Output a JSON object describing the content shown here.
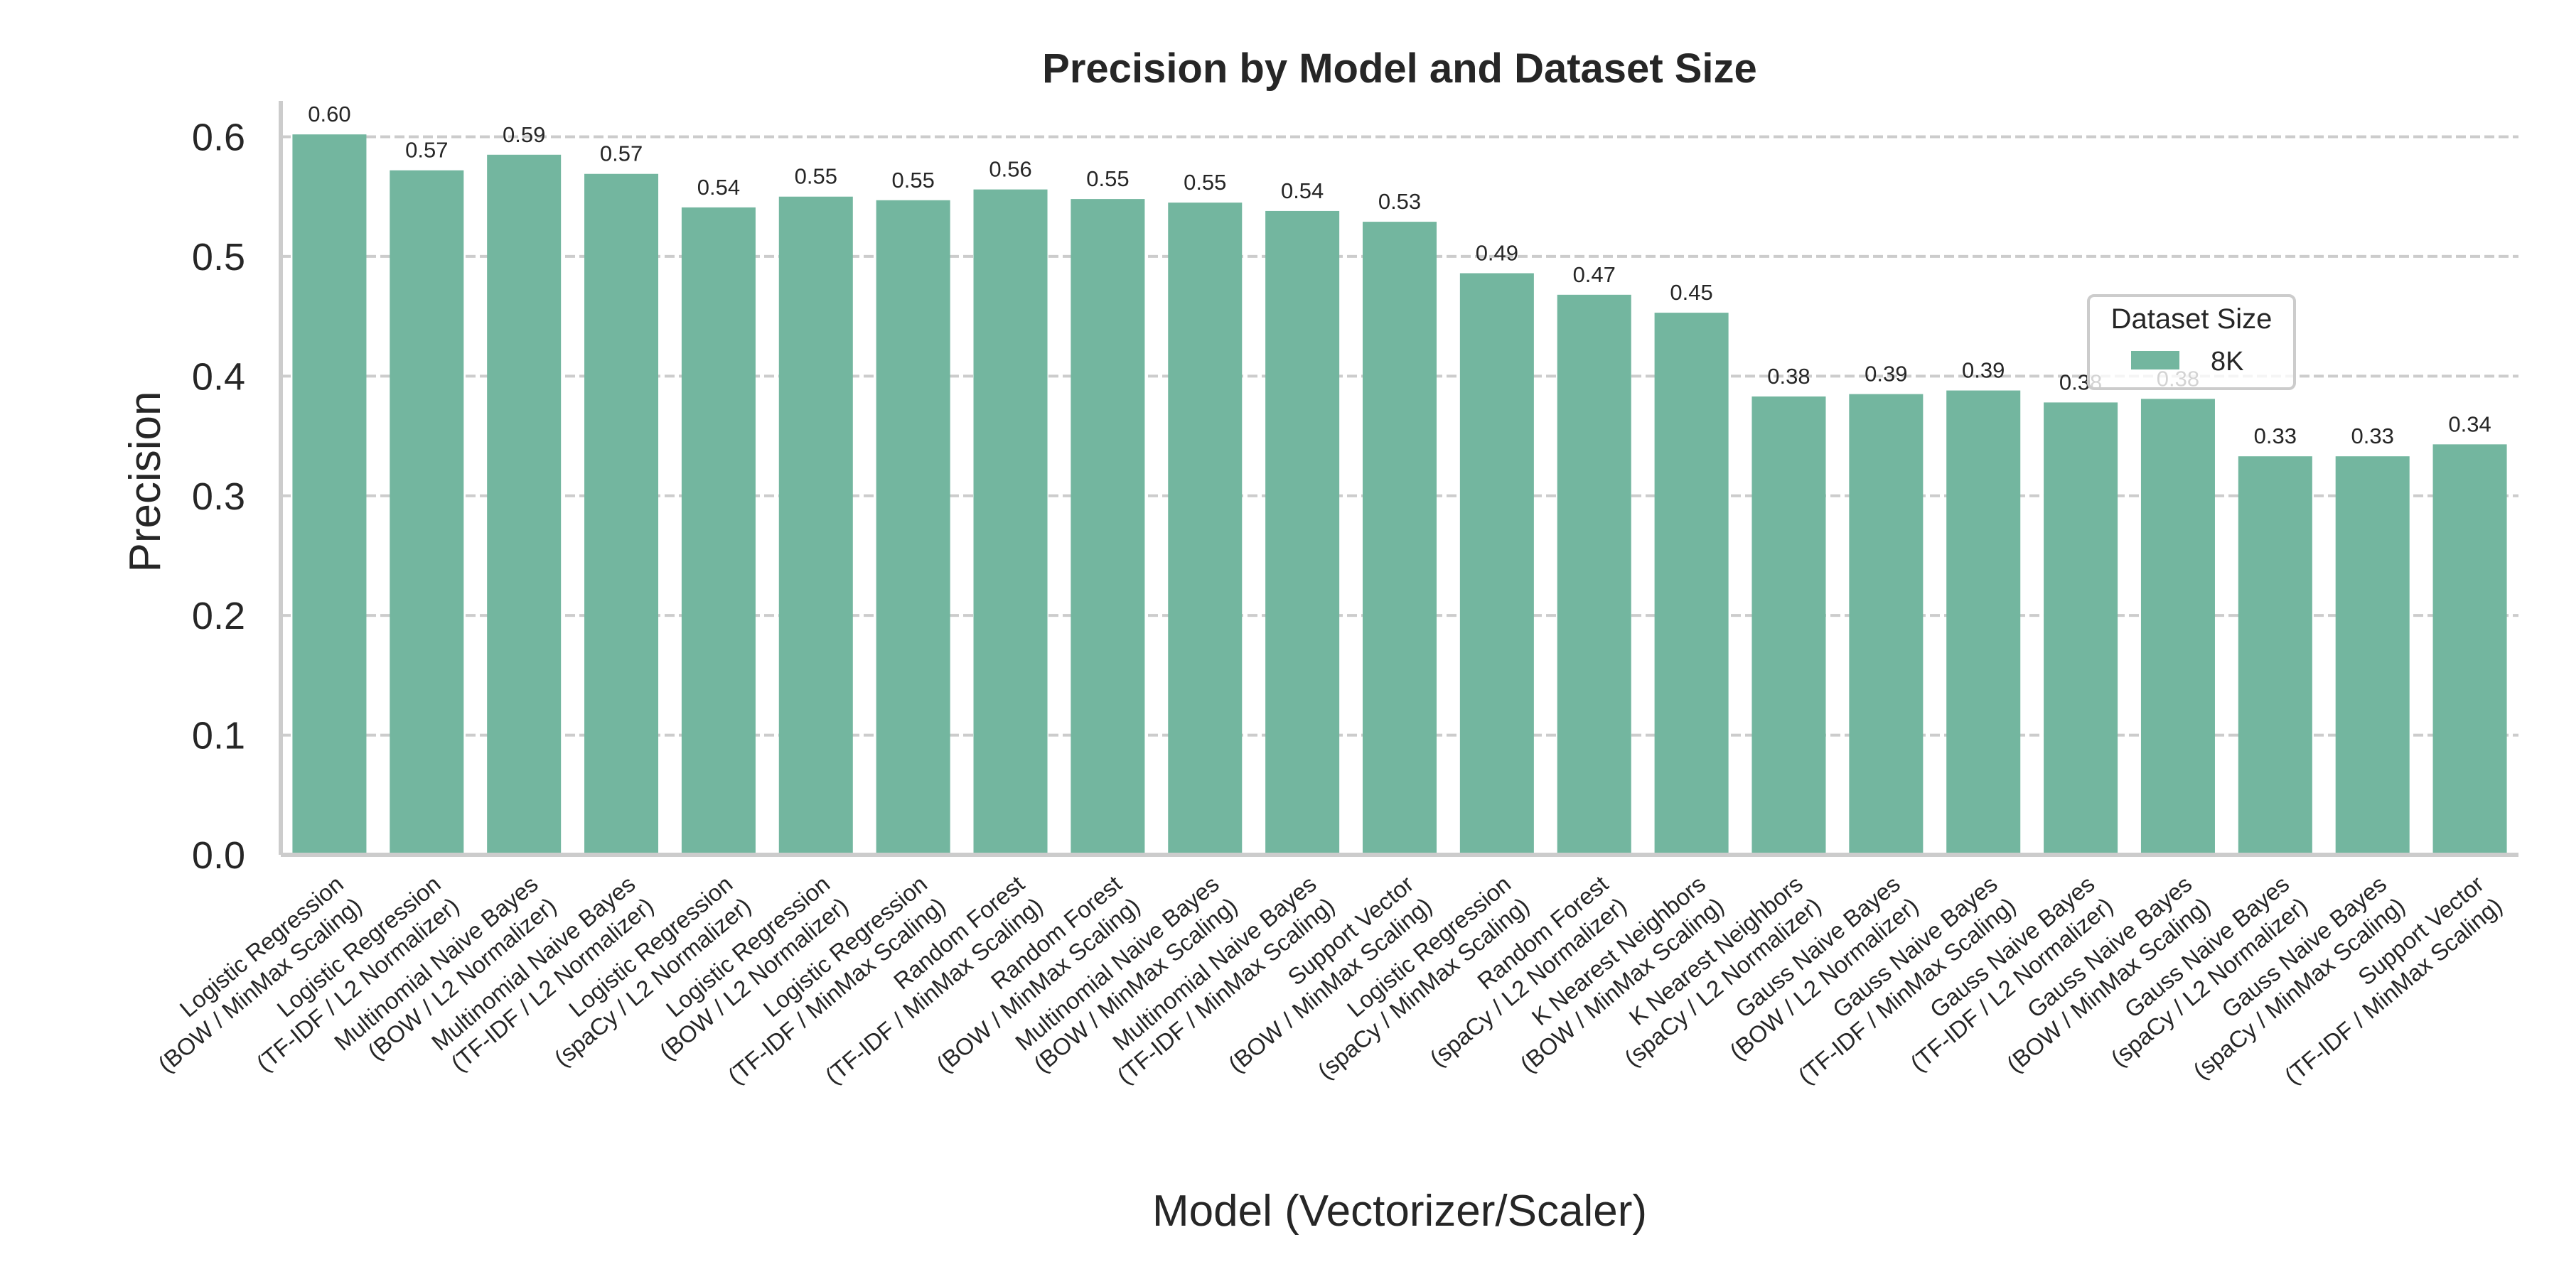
{
  "chart_data": {
    "type": "bar",
    "title": "Precision by Model and Dataset Size",
    "xlabel": "Model (Vectorizer/Scaler)",
    "ylabel": "Precision",
    "ylim": [
      0,
      0.63
    ],
    "yticks": [
      "0.0",
      "0.1",
      "0.2",
      "0.3",
      "0.4",
      "0.5",
      "0.6"
    ],
    "grid": true,
    "color": "#73b69f",
    "legend": {
      "title": "Dataset Size",
      "placement": "center-right",
      "entries": [
        "8K"
      ]
    },
    "categories": [
      [
        "Logistic Regression",
        "(BOW / MinMax Scaling)"
      ],
      [
        "Logistic Regression",
        "(TF-IDF / L2 Normalizer)"
      ],
      [
        "Multinomial Naive Bayes",
        "(BOW / L2 Normalizer)"
      ],
      [
        "Multinomial Naive Bayes",
        "(TF-IDF / L2 Normalizer)"
      ],
      [
        "Logistic Regression",
        "(spaCy / L2 Normalizer)"
      ],
      [
        "Logistic Regression",
        "(BOW / L2 Normalizer)"
      ],
      [
        "Logistic Regression",
        "(TF-IDF / MinMax Scaling)"
      ],
      [
        "Random Forest",
        "(TF-IDF / MinMax Scaling)"
      ],
      [
        "Random Forest",
        "(BOW / MinMax Scaling)"
      ],
      [
        "Multinomial Naive Bayes",
        "(BOW / MinMax Scaling)"
      ],
      [
        "Multinomial Naive Bayes",
        "(TF-IDF / MinMax Scaling)"
      ],
      [
        "Support Vector",
        "(BOW / MinMax Scaling)"
      ],
      [
        "Logistic Regression",
        "(spaCy / MinMax Scaling)"
      ],
      [
        "Random Forest",
        "(spaCy / L2 Normalizer)"
      ],
      [
        "K Nearest Neighbors",
        "(BOW / MinMax Scaling)"
      ],
      [
        "K Nearest Neighbors",
        "(spaCy / L2 Normalizer)"
      ],
      [
        "Gauss Naive Bayes",
        "(BOW / L2 Normalizer)"
      ],
      [
        "Gauss Naive Bayes",
        "(TF-IDF / MinMax Scaling)"
      ],
      [
        "Gauss Naive Bayes",
        "(TF-IDF / L2 Normalizer)"
      ],
      [
        "Gauss Naive Bayes",
        "(BOW / MinMax Scaling)"
      ],
      [
        "Gauss Naive Bayes",
        "(spaCy / L2 Normalizer)"
      ],
      [
        "Gauss Naive Bayes",
        "(spaCy / MinMax Scaling)"
      ],
      [
        "Support Vector",
        "(TF-IDF / MinMax Scaling)"
      ]
    ],
    "series": [
      {
        "name": "8K",
        "values": [
          0.602,
          0.572,
          0.585,
          0.569,
          0.541,
          0.55,
          0.547,
          0.556,
          0.548,
          0.545,
          0.538,
          0.529,
          0.486,
          0.468,
          0.453,
          0.383,
          0.385,
          0.388,
          0.378,
          0.381,
          0.333,
          0.333,
          0.343
        ],
        "labels": [
          "0.60",
          "0.57",
          "0.59",
          "0.57",
          "0.54",
          "0.55",
          "0.55",
          "0.56",
          "0.55",
          "0.55",
          "0.54",
          "0.53",
          "0.49",
          "0.47",
          "0.45",
          "0.38",
          "0.39",
          "0.39",
          "0.38",
          "0.38",
          "0.33",
          "0.33",
          "0.34"
        ]
      }
    ]
  }
}
